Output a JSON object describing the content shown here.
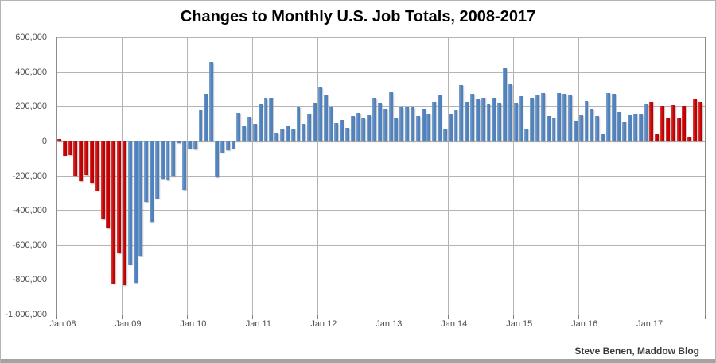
{
  "header": {
    "title": "Changes to Monthly U.S. Job Totals, 2008-2017"
  },
  "footer": {
    "credit": "Steve Benen, Maddow Blog"
  },
  "chart_data": {
    "type": "bar",
    "title": "Changes to Monthly U.S. Job Totals, 2008-2017",
    "xlabel": "",
    "ylabel": "",
    "values_unit": "thousands of jobs (monthly change, read from gridlines)",
    "start_month": "Jan 2008",
    "end_month": "Nov 2017",
    "ylim_thousands": [
      -1000,
      600
    ],
    "grid": true,
    "legend": "none",
    "y_tick_labels": [
      "600,000",
      "400,000",
      "200,000",
      "0",
      "-200,000",
      "-400,000",
      "-600,000",
      "-800,000",
      "-1,000,000"
    ],
    "x_tick_labels": [
      "Jan 08",
      "Jan 09",
      "Jan 10",
      "Jan 11",
      "Jan 12",
      "Jan 13",
      "Jan 14",
      "Jan 15",
      "Jan 16",
      "Jan 17"
    ],
    "bar_color_red": "#c00000",
    "bar_color_blue": "#4f81bd",
    "red_bar_index_ranges": [
      [
        0,
        12
      ],
      [
        109,
        118
      ]
    ],
    "values": [
      15,
      -85,
      -80,
      -200,
      -230,
      -195,
      -245,
      -285,
      -450,
      -500,
      -820,
      -645,
      -830,
      -710,
      -815,
      -660,
      -350,
      -470,
      -330,
      -215,
      -225,
      -200,
      -10,
      -280,
      -43,
      -45,
      185,
      273,
      460,
      -205,
      -63,
      -52,
      -40,
      163,
      85,
      140,
      100,
      215,
      245,
      250,
      45,
      75,
      85,
      75,
      195,
      100,
      160,
      220,
      310,
      270,
      198,
      104,
      121,
      78,
      144,
      163,
      132,
      152,
      246,
      221,
      186,
      283,
      132,
      198,
      198,
      198,
      144,
      186,
      160,
      229,
      264,
      74,
      155,
      185,
      327,
      229,
      275,
      244,
      250,
      215,
      250,
      220,
      423,
      329,
      220,
      263,
      74,
      247,
      270,
      278,
      144,
      136,
      280,
      275,
      265,
      118,
      150,
      233,
      186,
      144,
      40,
      280,
      275,
      167,
      114,
      152,
      160,
      155,
      216,
      229,
      41,
      206,
      137,
      210,
      132,
      206,
      29,
      244,
      224
    ]
  }
}
